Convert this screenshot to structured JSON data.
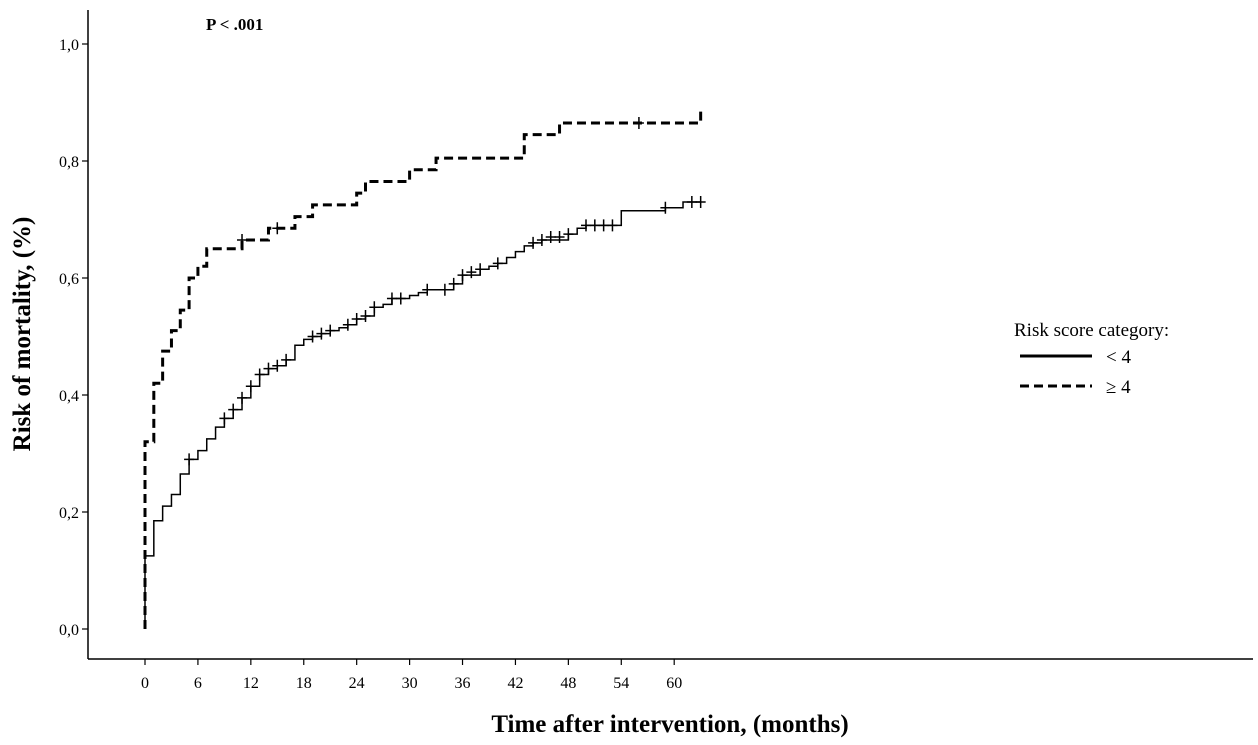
{
  "chart_data": {
    "type": "line",
    "subtype": "kaplan-meier-step",
    "annotation": "P < .001",
    "xlabel": "Time after intervention, (months)",
    "ylabel": "Risk of mortality, (%)",
    "x_ticks": [
      0,
      6,
      12,
      18,
      24,
      30,
      36,
      42,
      48,
      54,
      60
    ],
    "x_tick_labels": [
      "0",
      "6",
      "12",
      "18",
      "24",
      "30",
      "36",
      "42",
      "48",
      "54",
      "60"
    ],
    "y_ticks": [
      0.0,
      0.2,
      0.4,
      0.6,
      0.8,
      1.0
    ],
    "y_tick_labels": [
      "0,0",
      "0,2",
      "0,4",
      "0,6",
      "0,8",
      "1,0"
    ],
    "xlim": [
      -6.5,
      63.5
    ],
    "ylim": [
      -0.05,
      1.05
    ],
    "grid": false,
    "legend": {
      "title": "Risk score category:",
      "position": "right",
      "entries": [
        "< 4",
        "≥ 4"
      ]
    },
    "series": [
      {
        "name": "< 4",
        "style": "solid",
        "steps": [
          [
            0,
            0.0
          ],
          [
            0,
            0.125
          ],
          [
            1,
            0.185
          ],
          [
            2,
            0.21
          ],
          [
            3,
            0.23
          ],
          [
            4,
            0.265
          ],
          [
            5,
            0.29
          ],
          [
            6,
            0.305
          ],
          [
            7,
            0.325
          ],
          [
            8,
            0.345
          ],
          [
            9,
            0.36
          ],
          [
            10,
            0.375
          ],
          [
            11,
            0.395
          ],
          [
            12,
            0.415
          ],
          [
            13,
            0.435
          ],
          [
            14,
            0.445
          ],
          [
            15,
            0.45
          ],
          [
            16,
            0.46
          ],
          [
            17,
            0.485
          ],
          [
            18,
            0.495
          ],
          [
            19,
            0.5
          ],
          [
            20,
            0.505
          ],
          [
            21,
            0.51
          ],
          [
            22,
            0.515
          ],
          [
            23,
            0.52
          ],
          [
            24,
            0.53
          ],
          [
            25,
            0.535
          ],
          [
            26,
            0.55
          ],
          [
            27,
            0.555
          ],
          [
            28,
            0.565
          ],
          [
            30,
            0.57
          ],
          [
            31,
            0.575
          ],
          [
            32,
            0.58
          ],
          [
            35,
            0.59
          ],
          [
            36,
            0.605
          ],
          [
            38,
            0.615
          ],
          [
            39,
            0.62
          ],
          [
            40,
            0.625
          ],
          [
            41,
            0.635
          ],
          [
            42,
            0.645
          ],
          [
            43,
            0.655
          ],
          [
            44,
            0.66
          ],
          [
            45,
            0.665
          ],
          [
            48,
            0.675
          ],
          [
            49,
            0.685
          ],
          [
            50,
            0.69
          ],
          [
            54,
            0.715
          ],
          [
            59,
            0.72
          ],
          [
            61,
            0.73
          ]
        ],
        "x_end": 63,
        "censor_marks": [
          [
            5,
            0.29
          ],
          [
            9,
            0.36
          ],
          [
            10,
            0.375
          ],
          [
            11,
            0.395
          ],
          [
            12,
            0.415
          ],
          [
            13,
            0.435
          ],
          [
            14,
            0.445
          ],
          [
            15,
            0.45
          ],
          [
            16,
            0.46
          ],
          [
            19,
            0.5
          ],
          [
            20,
            0.505
          ],
          [
            21,
            0.51
          ],
          [
            23,
            0.52
          ],
          [
            24,
            0.53
          ],
          [
            25,
            0.535
          ],
          [
            26,
            0.55
          ],
          [
            28,
            0.565
          ],
          [
            29,
            0.565
          ],
          [
            32,
            0.58
          ],
          [
            34,
            0.58
          ],
          [
            35,
            0.59
          ],
          [
            36,
            0.605
          ],
          [
            37,
            0.61
          ],
          [
            38,
            0.615
          ],
          [
            40,
            0.625
          ],
          [
            44,
            0.66
          ],
          [
            45,
            0.665
          ],
          [
            46,
            0.67
          ],
          [
            47,
            0.67
          ],
          [
            48,
            0.675
          ],
          [
            50,
            0.69
          ],
          [
            51,
            0.69
          ],
          [
            52,
            0.69
          ],
          [
            53,
            0.69
          ],
          [
            59,
            0.72
          ],
          [
            62,
            0.73
          ],
          [
            63,
            0.73
          ]
        ]
      },
      {
        "name": "≥ 4",
        "style": "dashed",
        "steps": [
          [
            0,
            0.0
          ],
          [
            0,
            0.32
          ],
          [
            1,
            0.42
          ],
          [
            2,
            0.475
          ],
          [
            3,
            0.51
          ],
          [
            4,
            0.545
          ],
          [
            5,
            0.6
          ],
          [
            6,
            0.62
          ],
          [
            7,
            0.65
          ],
          [
            11,
            0.665
          ],
          [
            14,
            0.685
          ],
          [
            17,
            0.705
          ],
          [
            19,
            0.725
          ],
          [
            24,
            0.745
          ],
          [
            25,
            0.765
          ],
          [
            30,
            0.785
          ],
          [
            33,
            0.805
          ],
          [
            43,
            0.845
          ],
          [
            47,
            0.865
          ],
          [
            63,
            0.885
          ]
        ],
        "x_end": 63.5,
        "censor_marks": [
          [
            11,
            0.665
          ],
          [
            15,
            0.685
          ],
          [
            56,
            0.865
          ]
        ]
      }
    ]
  }
}
